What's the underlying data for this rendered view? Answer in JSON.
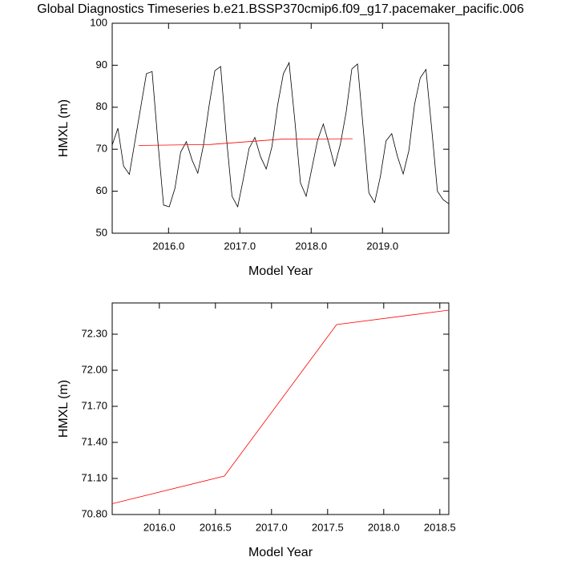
{
  "chart_data": [
    {
      "type": "line",
      "title": "Global Diagnostics Timeseries b.e21.BSSP370cmip6.f09_g17.pacemaker_pacific.006",
      "x_label": "Model Year",
      "y_label": "HMXL (m)",
      "xlim": [
        2015.21,
        2019.93
      ],
      "ylim": [
        50,
        100
      ],
      "xticks": [
        {
          "value": 2016,
          "label": "2016.0"
        },
        {
          "value": 2017,
          "label": "2017.0"
        },
        {
          "value": 2018,
          "label": "2018.0"
        },
        {
          "value": 2019,
          "label": "2019.0"
        }
      ],
      "yticks": [
        50,
        60,
        70,
        80,
        90,
        100
      ],
      "series": [
        {
          "color": "#000000",
          "x": [
            2015.21,
            2015.29,
            2015.37,
            2015.45,
            2015.53,
            2015.61,
            2015.69,
            2015.77,
            2015.85,
            2015.93,
            2016.01,
            2016.09,
            2016.17,
            2016.25,
            2016.33,
            2016.41,
            2016.49,
            2016.57,
            2016.65,
            2016.73,
            2016.81,
            2016.89,
            2016.97,
            2017.05,
            2017.13,
            2017.21,
            2017.29,
            2017.37,
            2017.45,
            2017.53,
            2017.61,
            2017.69,
            2017.77,
            2017.85,
            2017.93,
            2018.01,
            2018.09,
            2018.17,
            2018.25,
            2018.33,
            2018.41,
            2018.49,
            2018.57,
            2018.65,
            2018.73,
            2018.81,
            2018.89,
            2018.97,
            2019.05,
            2019.13,
            2019.21,
            2019.29,
            2019.37,
            2019.45,
            2019.53,
            2019.61,
            2019.69,
            2019.77,
            2019.85,
            2019.93
          ],
          "values": [
            71,
            75,
            66,
            64,
            72,
            80,
            88,
            88.5,
            72,
            56.7,
            56.3,
            60.7,
            69.3,
            71.8,
            67.4,
            64.3,
            71,
            80.5,
            88.7,
            89.7,
            73,
            58.8,
            56.3,
            63,
            70.2,
            72.8,
            68.2,
            65.3,
            70.6,
            80.5,
            88,
            90.6,
            77,
            62,
            58.8,
            65.5,
            72.2,
            76,
            71.2,
            66,
            71.2,
            78.8,
            89.1,
            90.3,
            75,
            59.6,
            57.3,
            63.5,
            72,
            73.7,
            68.3,
            64.1,
            69.7,
            80.7,
            87,
            89,
            75,
            60,
            58,
            57
          ]
        },
        {
          "color": "#ff0000",
          "x": [
            2015.58,
            2016.58,
            2017.58,
            2018.58
          ],
          "values": [
            70.89,
            71.12,
            72.38,
            72.5
          ]
        }
      ]
    },
    {
      "type": "line",
      "x_label": "Model Year",
      "y_label": "HMXL (m)",
      "xlim": [
        2015.58,
        2018.58
      ],
      "ylim": [
        70.8,
        72.56
      ],
      "xticks": [
        {
          "value": 2016,
          "label": "2016.0"
        },
        {
          "value": 2016.5,
          "label": "2016.5"
        },
        {
          "value": 2017,
          "label": "2017.0"
        },
        {
          "value": 2017.5,
          "label": "2017.5"
        },
        {
          "value": 2018,
          "label": "2018.0"
        },
        {
          "value": 2018.5,
          "label": "2018.5"
        }
      ],
      "yticks": [
        {
          "value": 70.8,
          "label": "70.80"
        },
        {
          "value": 71.1,
          "label": "71.10"
        },
        {
          "value": 71.4,
          "label": "71.40"
        },
        {
          "value": 71.7,
          "label": "71.70"
        },
        {
          "value": 72,
          "label": "72.00"
        },
        {
          "value": 72.3,
          "label": "72.30"
        }
      ],
      "series": [
        {
          "color": "#ff0000",
          "x": [
            2015.58,
            2016.58,
            2017.58,
            2018.58
          ],
          "values": [
            70.89,
            71.12,
            72.38,
            72.5
          ]
        }
      ]
    }
  ]
}
